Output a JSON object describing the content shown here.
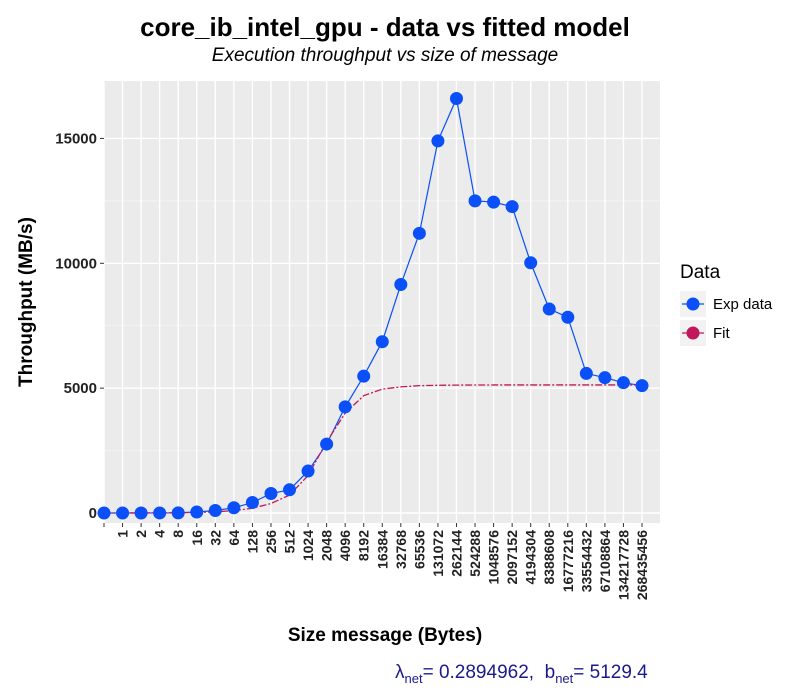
{
  "chart_data": {
    "type": "line",
    "title": "core_ib_intel_gpu - data vs fitted model",
    "subtitle": "Execution throughput vs size of message",
    "xlabel": "Size message (Bytes)",
    "ylabel": "Throughput (MB/s)",
    "categories": [
      "",
      "1",
      "2",
      "4",
      "8",
      "16",
      "32",
      "64",
      "128",
      "256",
      "512",
      "1024",
      "2048",
      "4096",
      "8192",
      "16384",
      "32768",
      "65536",
      "131072",
      "262144",
      "524288",
      "1048576",
      "2097152",
      "4194304",
      "8388608",
      "16777216",
      "33554432",
      "67108864",
      "134217728",
      "268435456"
    ],
    "y_ticks": [
      0,
      5000,
      10000,
      15000
    ],
    "y_tick_labels": [
      "0",
      "5000",
      "10000",
      "15000"
    ],
    "ylim": [
      -400,
      17300
    ],
    "grid": true,
    "legend": {
      "title": "Data",
      "position": "right"
    },
    "series": [
      {
        "name": "Exp data",
        "color": "#0a4ff7",
        "values": [
          0,
          0,
          1,
          2,
          5,
          40,
          100,
          210,
          420,
          780,
          930,
          1680,
          2760,
          4250,
          5480,
          6860,
          9150,
          11200,
          14900,
          16600,
          12500,
          12450,
          12270,
          10020,
          8170,
          7840,
          5590,
          5420,
          5220,
          5100
        ]
      },
      {
        "name": "Fit",
        "color": "#c2185b",
        "values": [
          0,
          1.5,
          3,
          6,
          12,
          24,
          48,
          96,
          190,
          380,
          720,
          1500,
          2850,
          4000,
          4700,
          4960,
          5050,
          5100,
          5115,
          5122,
          5126,
          5128,
          5128.8,
          5129.1,
          5129.3,
          5129.4,
          5129.4,
          5129.4,
          5129.4,
          5129.4
        ]
      }
    ]
  },
  "caption": {
    "lambda_symbol": "λ",
    "lambda_sub": "net",
    "lambda_value": "= 0.2894962,",
    "b_symbol": "b",
    "b_sub": "net",
    "b_value": "= 5129.4"
  }
}
